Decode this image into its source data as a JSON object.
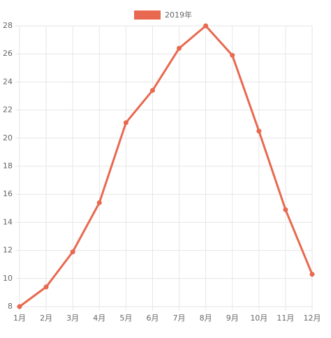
{
  "chart_data": {
    "type": "line",
    "categories": [
      "1月",
      "2月",
      "3月",
      "4月",
      "5月",
      "6月",
      "7月",
      "8月",
      "9月",
      "10月",
      "11月",
      "12月"
    ],
    "series": [
      {
        "name": "2019年",
        "color": "#e8694f",
        "values": [
          8.0,
          9.4,
          11.9,
          15.4,
          21.1,
          23.4,
          26.4,
          28.0,
          25.9,
          20.5,
          14.9,
          10.3
        ]
      }
    ],
    "ylim": [
      8,
      28
    ],
    "yticks": [
      8,
      10,
      12,
      14,
      16,
      18,
      20,
      22,
      24,
      26,
      28
    ],
    "grid": true,
    "legend": "top"
  }
}
